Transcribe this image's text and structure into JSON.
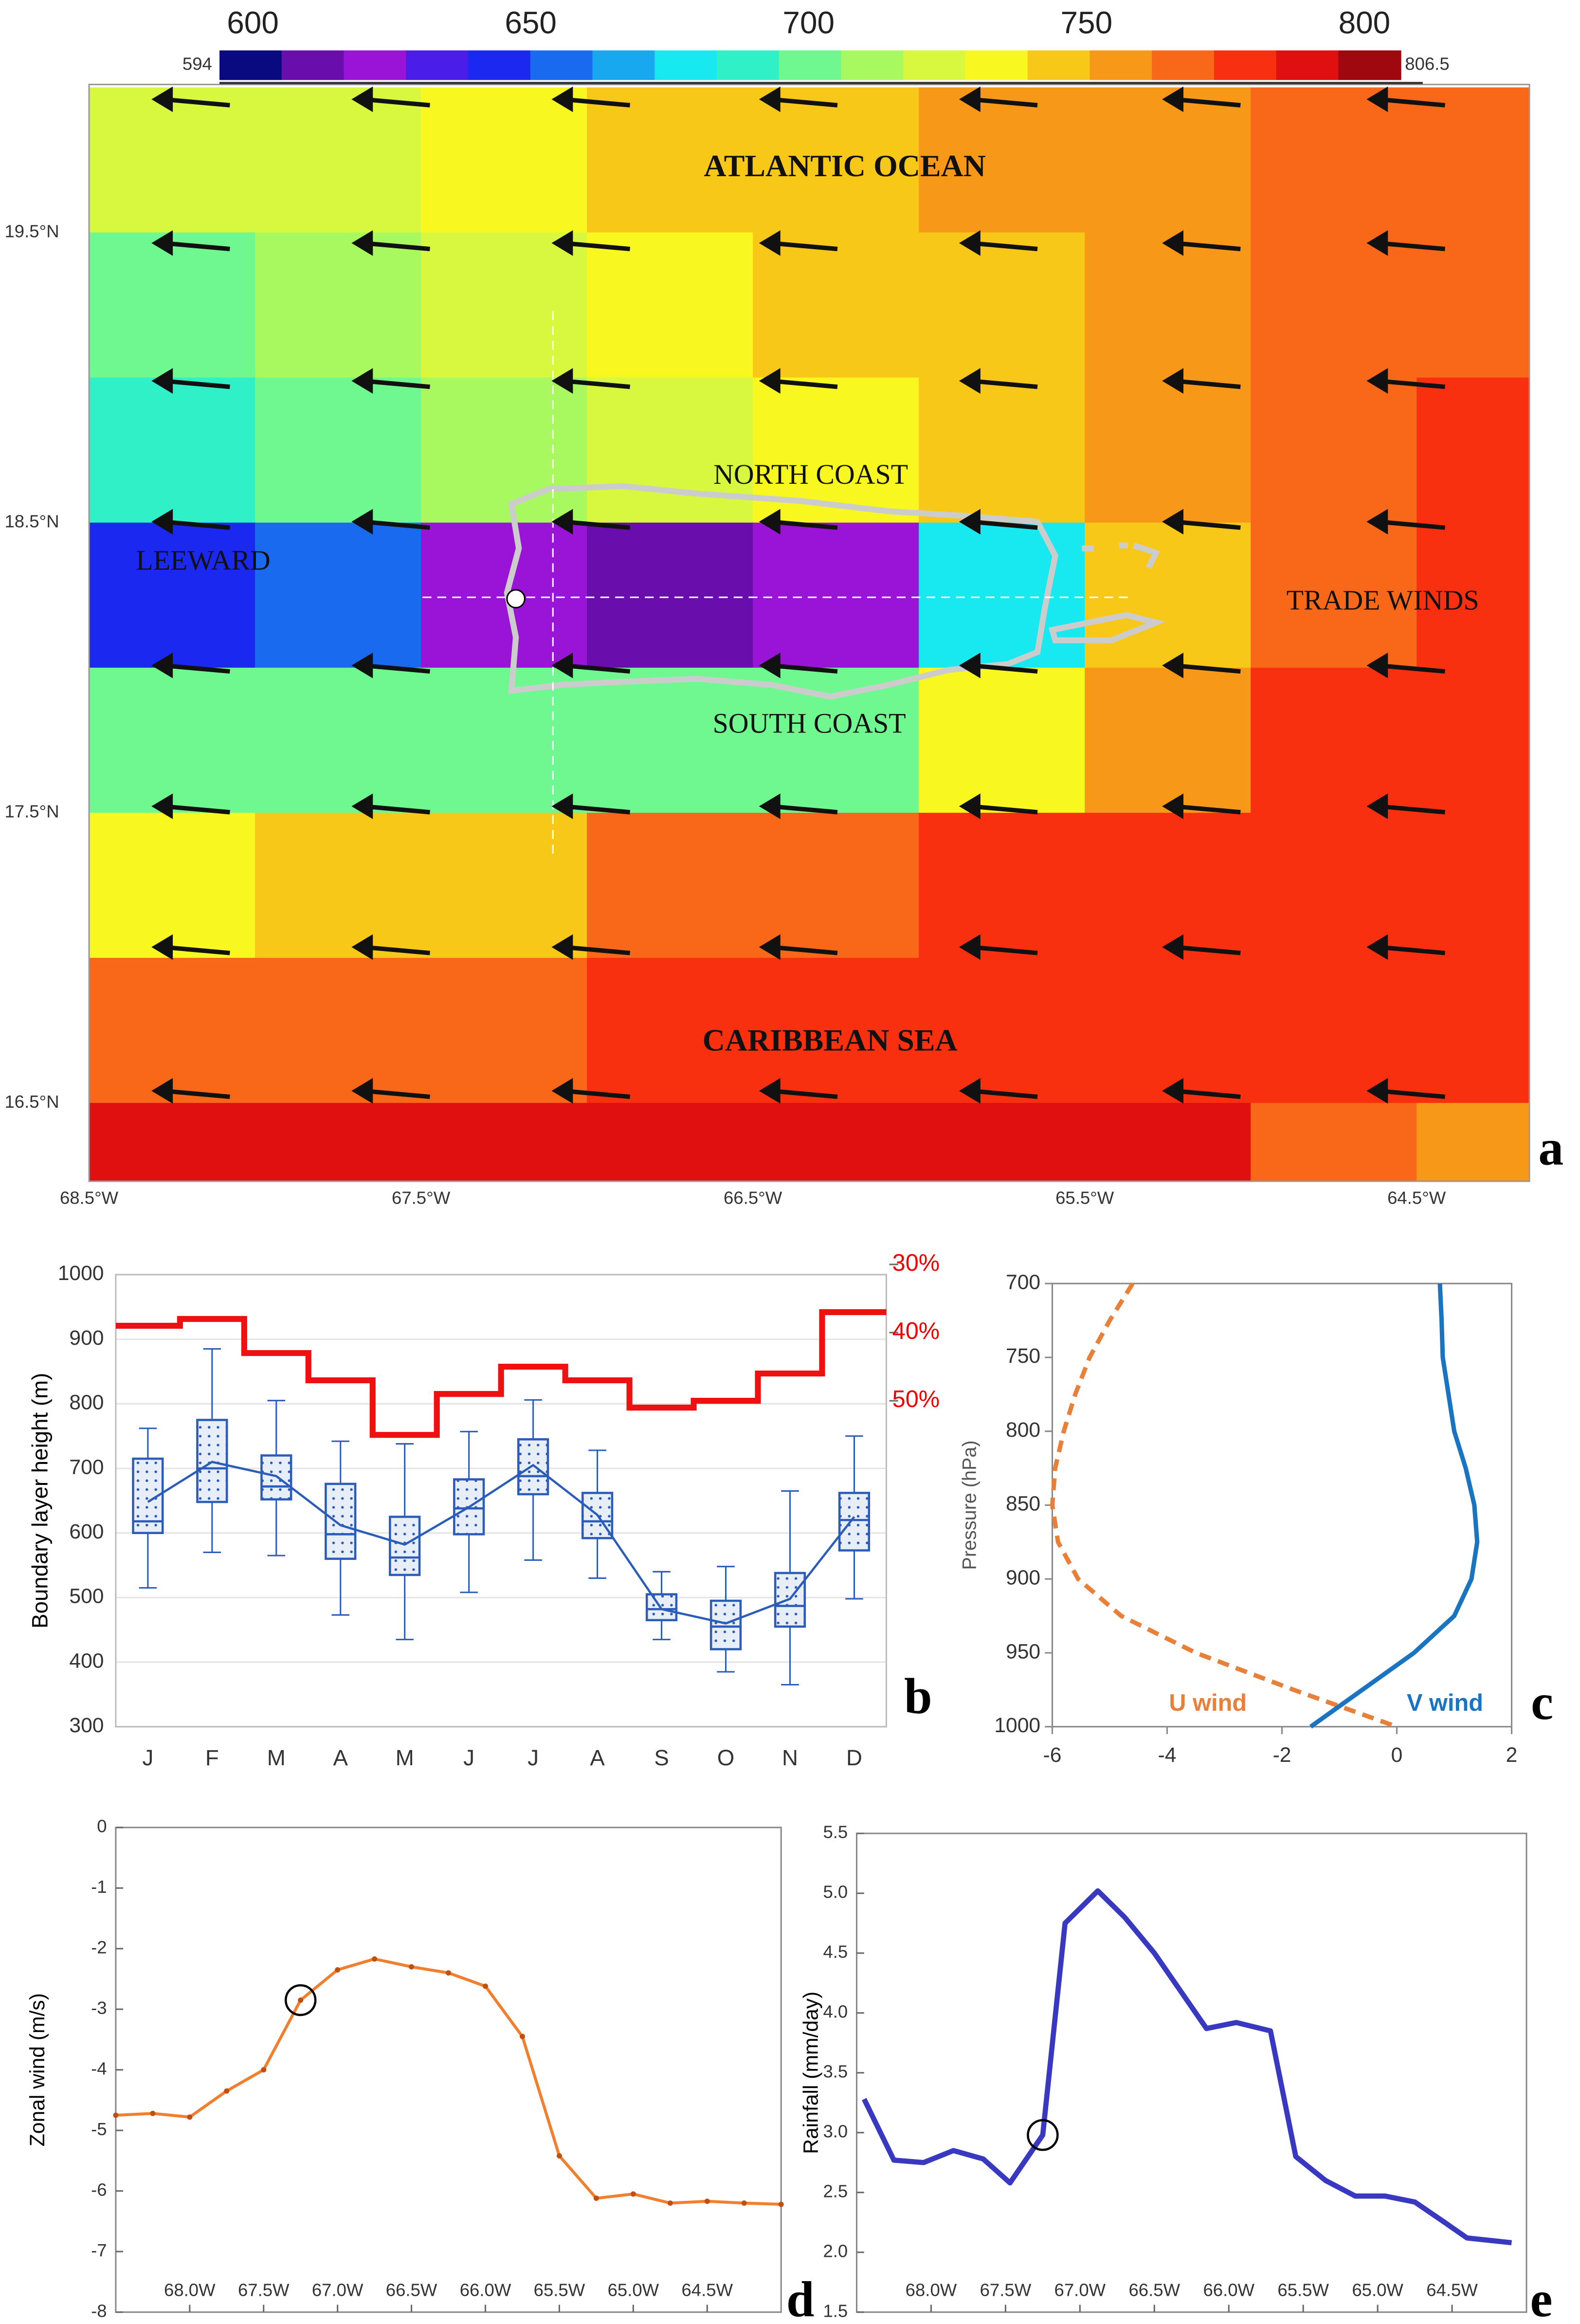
{
  "chart_data": [
    {
      "type": "contour",
      "panel": "a",
      "colorbar_ticks": [
        600,
        650,
        700,
        750,
        800
      ],
      "clim": [
        594,
        806.5
      ],
      "colors": [
        "#0a0a80",
        "#6a0dad",
        "#9a14d8",
        "#4a1ee8",
        "#1a28f0",
        "#1a6af0",
        "#18a8f0",
        "#18e8f0",
        "#30f0c8",
        "#70f890",
        "#a8f860",
        "#d8f840",
        "#f8f820",
        "#f8c818",
        "#f89818",
        "#f86818",
        "#f83010",
        "#e01010",
        "#a00810"
      ],
      "xlim": [
        -68.5,
        -64.16
      ],
      "ylim": [
        16.23,
        20.01
      ],
      "xticks": [
        {
          "value": -68.5,
          "label": "68.5°W"
        },
        {
          "value": -67.5,
          "label": "67.5°W"
        },
        {
          "value": -66.5,
          "label": "66.5°W"
        },
        {
          "value": -65.5,
          "label": "65.5°W"
        },
        {
          "value": -64.5,
          "label": "64.5°W"
        }
      ],
      "yticks": [
        {
          "value": 16.5,
          "label": "16.5°N"
        },
        {
          "value": 17.5,
          "label": "17.5°N"
        },
        {
          "value": 18.5,
          "label": "18.5°N"
        },
        {
          "value": 19.5,
          "label": "19.5°N"
        }
      ],
      "x": [
        -68.25,
        -67.75,
        -67.25,
        -66.75,
        -66.25,
        -65.75,
        -65.25,
        -64.75,
        -64.25
      ],
      "y": [
        19.75,
        19.25,
        18.75,
        18.25,
        17.75,
        17.25,
        16.75,
        16.25
      ],
      "z": [
        [
          718,
          725,
          735,
          742,
          745,
          752,
          760,
          765,
          770
        ],
        [
          705,
          715,
          728,
          738,
          742,
          750,
          760,
          768,
          772
        ],
        [
          690,
          700,
          712,
          720,
          730,
          740,
          755,
          770,
          775
        ],
        [
          640,
          655,
          625,
          610,
          625,
          680,
          745,
          772,
          778
        ],
        [
          695,
          700,
          705,
          700,
          705,
          735,
          760,
          775,
          780
        ],
        [
          735,
          740,
          745,
          765,
          770,
          775,
          778,
          780,
          780
        ],
        [
          765,
          770,
          772,
          775,
          778,
          780,
          780,
          782,
          775
        ],
        [
          785,
          786,
          788,
          790,
          790,
          792,
          790,
          765,
          760
        ]
      ],
      "annotations": [
        "ATLANTIC OCEAN",
        "NORTH COAST",
        "LEEWARD",
        "TRADE WINDS",
        "SOUTH COAST",
        "CARIBBEAN SEA"
      ]
    },
    {
      "type": "box",
      "panel": "b",
      "y_label": "Boundary layer height (m)",
      "categories": [
        "J",
        "F",
        "M",
        "A",
        "M",
        "J",
        "J",
        "A",
        "S",
        "O",
        "N",
        "D"
      ],
      "whisker_low": [
        515,
        570,
        565,
        473,
        435,
        508,
        558,
        530,
        435,
        385,
        365,
        498
      ],
      "q1": [
        600,
        648,
        652,
        560,
        535,
        598,
        660,
        592,
        465,
        420,
        455,
        573
      ],
      "median": [
        618,
        700,
        672,
        598,
        562,
        638,
        688,
        618,
        482,
        455,
        487,
        620
      ],
      "q3": [
        715,
        775,
        720,
        676,
        625,
        683,
        745,
        662,
        505,
        495,
        538,
        662
      ],
      "whisker_high": [
        762,
        885,
        805,
        742,
        738,
        757,
        806,
        728,
        540,
        548,
        665,
        750
      ],
      "mean": [
        648,
        710,
        688,
        612,
        582,
        640,
        705,
        628,
        482,
        460,
        498,
        625
      ],
      "box_color": "#2a5cb8",
      "ylim": [
        300,
        1000
      ],
      "yticks": [
        300,
        400,
        500,
        600,
        700,
        800,
        900,
        1000
      ],
      "y2lim": [
        97.8,
        31.5
      ],
      "y2ticks": [
        {
          "value": 30,
          "label": "30%"
        },
        {
          "value": 40,
          "label": "40%"
        },
        {
          "value": 50,
          "label": "50%"
        }
      ],
      "series": [
        {
          "color": "#ee1111",
          "axis": "y2",
          "values": [
            39,
            38,
            43,
            47,
            55,
            49,
            45,
            47,
            51,
            50,
            46,
            37
          ]
        }
      ]
    },
    {
      "type": "profile",
      "panel": "c",
      "y_label": "Pressure (hPa)",
      "y": [
        700,
        725,
        750,
        775,
        800,
        825,
        850,
        875,
        900,
        925,
        950,
        975,
        1000
      ],
      "series": [
        {
          "name": "U wind",
          "color": "#e8803a",
          "dashed": true,
          "values": [
            -4.6,
            -5.0,
            -5.35,
            -5.6,
            -5.8,
            -5.95,
            -6.0,
            -5.9,
            -5.55,
            -4.8,
            -3.5,
            -1.8,
            0.0
          ]
        },
        {
          "name": "V wind",
          "color": "#1a74c0",
          "dashed": false,
          "values": [
            0.75,
            0.78,
            0.8,
            0.9,
            1.0,
            1.2,
            1.35,
            1.4,
            1.3,
            1.0,
            0.3,
            -0.6,
            -1.5
          ]
        }
      ],
      "xlim": [
        -6,
        2
      ],
      "xticks": [
        -6,
        -4,
        -2,
        0,
        2
      ],
      "ylim": [
        1000,
        700
      ],
      "yticks": [
        700,
        750,
        800,
        850,
        900,
        950,
        1000
      ]
    },
    {
      "type": "line",
      "panel": "d",
      "y_label": "Zonal wind (m/s)",
      "color": "#f08030",
      "highlight": 5,
      "x": [
        -68.5,
        -68.25,
        -68.0,
        -67.75,
        -67.5,
        -67.25,
        -67.0,
        -66.75,
        -66.5,
        -66.25,
        -66.0,
        -65.75,
        -65.5,
        -65.25,
        -65.0,
        -64.75,
        -64.5,
        -64.25,
        -64.0
      ],
      "values": [
        -4.75,
        -4.72,
        -4.78,
        -4.35,
        -4.0,
        -2.85,
        -2.35,
        -2.17,
        -2.3,
        -2.4,
        -2.62,
        -3.45,
        -5.42,
        -6.12,
        -6.05,
        -6.2,
        -6.17,
        -6.2,
        -6.22
      ],
      "xlim": [
        -68.5,
        -64.0
      ],
      "ylim": [
        -8,
        0
      ],
      "yticks": [
        -8,
        -7,
        -6,
        -5,
        -4,
        -3,
        -2,
        -1,
        0
      ],
      "xticks": [
        {
          "value": -68.0,
          "label": "68.0W"
        },
        {
          "value": -67.5,
          "label": "67.5W"
        },
        {
          "value": -67.0,
          "label": "67.0W"
        },
        {
          "value": -66.5,
          "label": "66.5W"
        },
        {
          "value": -66.0,
          "label": "66.0W"
        },
        {
          "value": -65.5,
          "label": "65.5W"
        },
        {
          "value": -65.0,
          "label": "65.0W"
        },
        {
          "value": -64.5,
          "label": "64.5W"
        }
      ]
    },
    {
      "type": "line",
      "panel": "e",
      "y_label": "Rainfall (mm/day)",
      "color": "#3838c0",
      "highlight": 6,
      "x": [
        -68.45,
        -68.25,
        -68.05,
        -67.85,
        -67.65,
        -67.47,
        -67.25,
        -67.1,
        -66.88,
        -66.7,
        -66.5,
        -66.15,
        -65.95,
        -65.72,
        -65.55,
        -65.35,
        -65.15,
        -64.95,
        -64.75,
        -64.55,
        -64.4,
        -64.1
      ],
      "values": [
        3.28,
        2.77,
        2.75,
        2.85,
        2.78,
        2.58,
        2.98,
        4.75,
        5.02,
        4.8,
        4.5,
        3.87,
        3.92,
        3.85,
        2.8,
        2.6,
        2.47,
        2.47,
        2.42,
        2.25,
        2.12,
        2.08
      ],
      "xlim": [
        -68.5,
        -64.0
      ],
      "ylim": [
        1.5,
        5.5
      ],
      "yticks": [
        1.5,
        {
          "value": 2,
          "label": "2.0"
        },
        2.5,
        {
          "value": 3,
          "label": "3.0"
        },
        3.5,
        {
          "value": 4,
          "label": "4.0"
        },
        4.5,
        {
          "value": 5,
          "label": "5.0"
        },
        5.5
      ],
      "xticks": [
        {
          "value": -68.0,
          "label": "68.0W"
        },
        {
          "value": -67.5,
          "label": "67.5W"
        },
        {
          "value": -67.0,
          "label": "67.0W"
        },
        {
          "value": -66.5,
          "label": "66.5W"
        },
        {
          "value": -66.0,
          "label": "66.0W"
        },
        {
          "value": -65.5,
          "label": "65.5W"
        },
        {
          "value": -65.0,
          "label": "65.0W"
        },
        {
          "value": -64.5,
          "label": "64.5W"
        }
      ]
    }
  ]
}
